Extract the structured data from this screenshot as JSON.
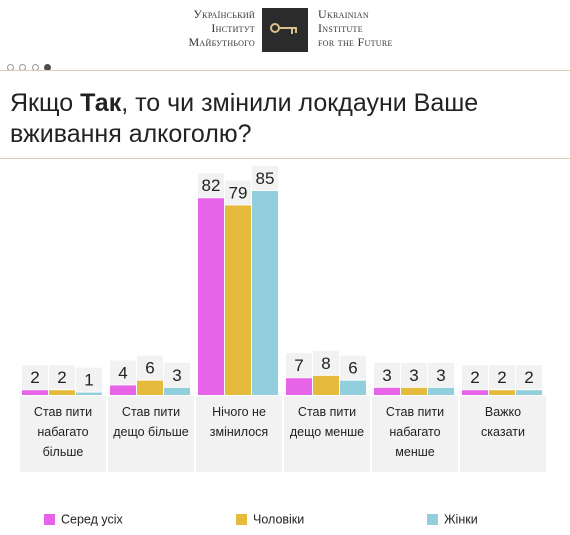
{
  "header": {
    "org_ua_lines": [
      "Український",
      "Інститут",
      "Майбутнього"
    ],
    "org_en_lines": [
      "Ukrainian",
      "Institute",
      "for the Future"
    ],
    "logo_icon": "key-icon",
    "pagination": {
      "total": 4,
      "active": 4
    }
  },
  "title": {
    "normal_prefix": "Якщо ",
    "bold_word": "Так",
    "rest": ", то чи змінили локдауни Ваше вживання алкоголю?"
  },
  "categories": [
    [
      "Став пити",
      "набагато",
      "більше"
    ],
    [
      "Став пити",
      "дещо більше"
    ],
    [
      "Нічого не",
      "змінилося"
    ],
    [
      "Став пити",
      "дещо менше"
    ],
    [
      "Став пити",
      "набагато",
      "менше"
    ],
    [
      "Важко",
      "сказати"
    ]
  ],
  "chart_data": {
    "type": "bar",
    "categories": [
      "Став пити набагато більше",
      "Став пити дещо більше",
      "Нічого не змінилося",
      "Став пити дещо менше",
      "Став пити набагато менше",
      "Важко сказати"
    ],
    "series": [
      {
        "name": "Серед усіх",
        "values": [
          2,
          4,
          82,
          7,
          3,
          2
        ],
        "color": "#e763e8"
      },
      {
        "name": "Чоловіки",
        "values": [
          2,
          6,
          79,
          8,
          3,
          2
        ],
        "color": "#e5bb3e"
      },
      {
        "name": "Жінки",
        "values": [
          1,
          3,
          85,
          6,
          3,
          2
        ],
        "color": "#92cfdc"
      }
    ],
    "ylim": [
      0,
      85
    ],
    "label_background": "#f2f2f2",
    "legend_position": "bottom"
  }
}
